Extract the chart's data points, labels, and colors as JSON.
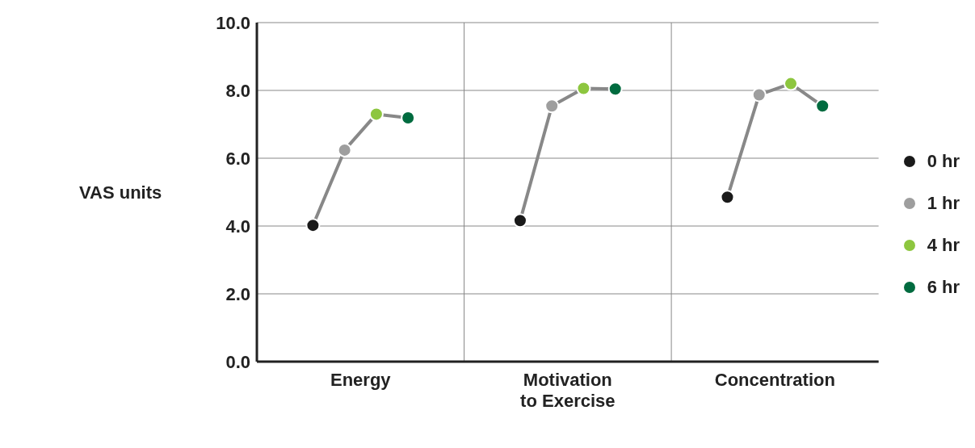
{
  "chart_data": {
    "type": "scatter",
    "ylabel": "VAS units",
    "categories": [
      "Energy",
      "Motivation to Exercise",
      "Concentration"
    ],
    "ylim": [
      0,
      10
    ],
    "yticks": [
      {
        "value": 0,
        "label": "0.0"
      },
      {
        "value": 2,
        "label": "2.0"
      },
      {
        "value": 4,
        "label": "4.0"
      },
      {
        "value": 6,
        "label": "6.0"
      },
      {
        "value": 8,
        "label": "8.0"
      },
      {
        "value": 10,
        "label": "10.0"
      }
    ],
    "grid": true,
    "legend": "right",
    "marker": "circle",
    "line_style": "solid",
    "color": "#888888",
    "series": [
      {
        "name": "0 hr",
        "color": "#1a1a1a",
        "values": [
          4.02,
          4.16,
          4.85
        ]
      },
      {
        "name": "1 hr",
        "color": "#9e9e9e",
        "values": [
          6.24,
          7.54,
          7.87
        ]
      },
      {
        "name": "4 hr",
        "color": "#8dc63f",
        "values": [
          7.3,
          8.06,
          8.2
        ]
      },
      {
        "name": "6 hr",
        "color": "#006b3f",
        "values": [
          7.19,
          8.04,
          7.54
        ]
      }
    ]
  }
}
